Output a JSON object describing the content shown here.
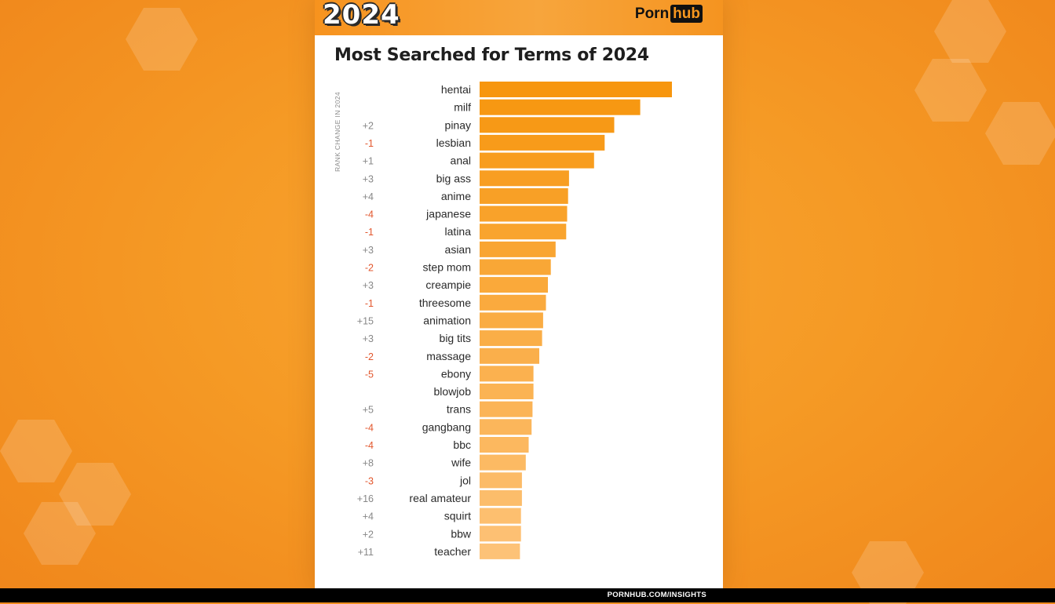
{
  "header": {
    "year_badge": "2024",
    "logo_left": "Porn",
    "logo_right": "hub"
  },
  "footer": {
    "url": "PORNHUB.COM/INSIGHTS"
  },
  "colors": {
    "positive": "#888888",
    "negative": "#e2562c",
    "bar_dark": "#f7960e",
    "bar_light": "#fdc277"
  },
  "chart_data": {
    "type": "bar",
    "orientation": "horizontal",
    "title": "Most Searched for Terms of 2024",
    "side_label": "RANK CHANGE IN 2024",
    "categories": [
      "hentai",
      "milf",
      "pinay",
      "lesbian",
      "anal",
      "big ass",
      "anime",
      "japanese",
      "latina",
      "asian",
      "step mom",
      "creampie",
      "threesome",
      "animation",
      "big tits",
      "massage",
      "ebony",
      "blowjob",
      "trans",
      "gangbang",
      "bbc",
      "wife",
      "jol",
      "real amateur",
      "squirt",
      "bbw",
      "teacher"
    ],
    "rank_change": [
      "",
      "",
      "+2",
      "-1",
      "+1",
      "+3",
      "+4",
      "-4",
      "-1",
      "+3",
      "-2",
      "+3",
      "-1",
      "+15",
      "+3",
      "-2",
      "-5",
      "",
      "+5",
      "-4",
      "-4",
      "+8",
      "-3",
      "+16",
      "+4",
      "+2",
      "+11"
    ],
    "values": [
      100,
      83.5,
      70,
      65,
      59.5,
      46.5,
      46,
      45.5,
      45,
      39.5,
      37,
      35.5,
      34.5,
      33,
      32.5,
      31,
      28,
      28,
      27.5,
      27,
      25.5,
      24,
      22,
      22,
      21.5,
      21.5,
      21
    ],
    "xlim": [
      0,
      100
    ]
  }
}
